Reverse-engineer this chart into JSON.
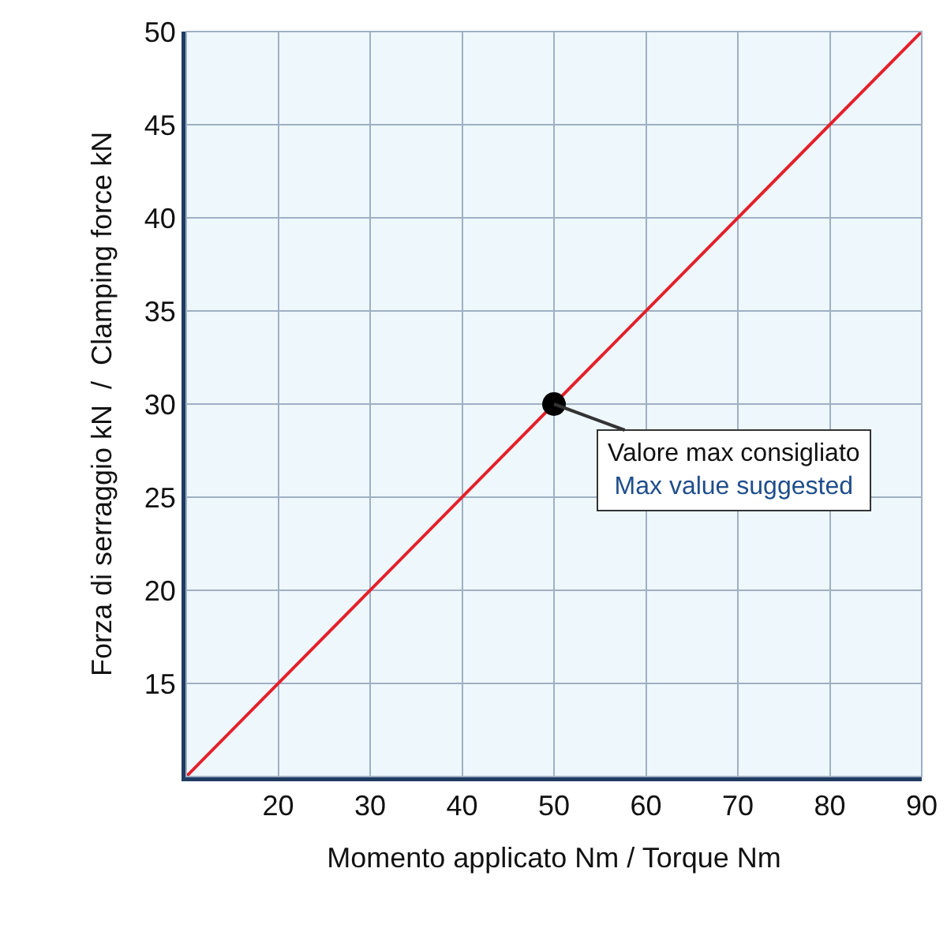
{
  "chart_data": {
    "type": "line",
    "xlabel": "Momento applicato Nm / Torque Nm",
    "ylabel": "Forza di serraggio kN  /  Clamping force kN",
    "series": [
      {
        "color": "#e3202a",
        "x": [
          10,
          90
        ],
        "values": [
          10,
          50
        ],
        "marker": "none"
      },
      {
        "type": "scatter",
        "color": "#000000",
        "x": [
          50
        ],
        "values": [
          30
        ],
        "marker": "circle"
      }
    ],
    "annotations": [
      {
        "text": "Valore max consigliato\nMax value suggested",
        "x": 50,
        "y": 30
      }
    ],
    "xlim": [
      10,
      90
    ],
    "xticks": [
      20,
      30,
      40,
      50,
      60,
      70,
      80,
      90
    ],
    "ylim": [
      10,
      50
    ],
    "yticks": [
      15,
      20,
      25,
      30,
      35,
      40,
      45,
      50
    ],
    "grid": true
  }
}
